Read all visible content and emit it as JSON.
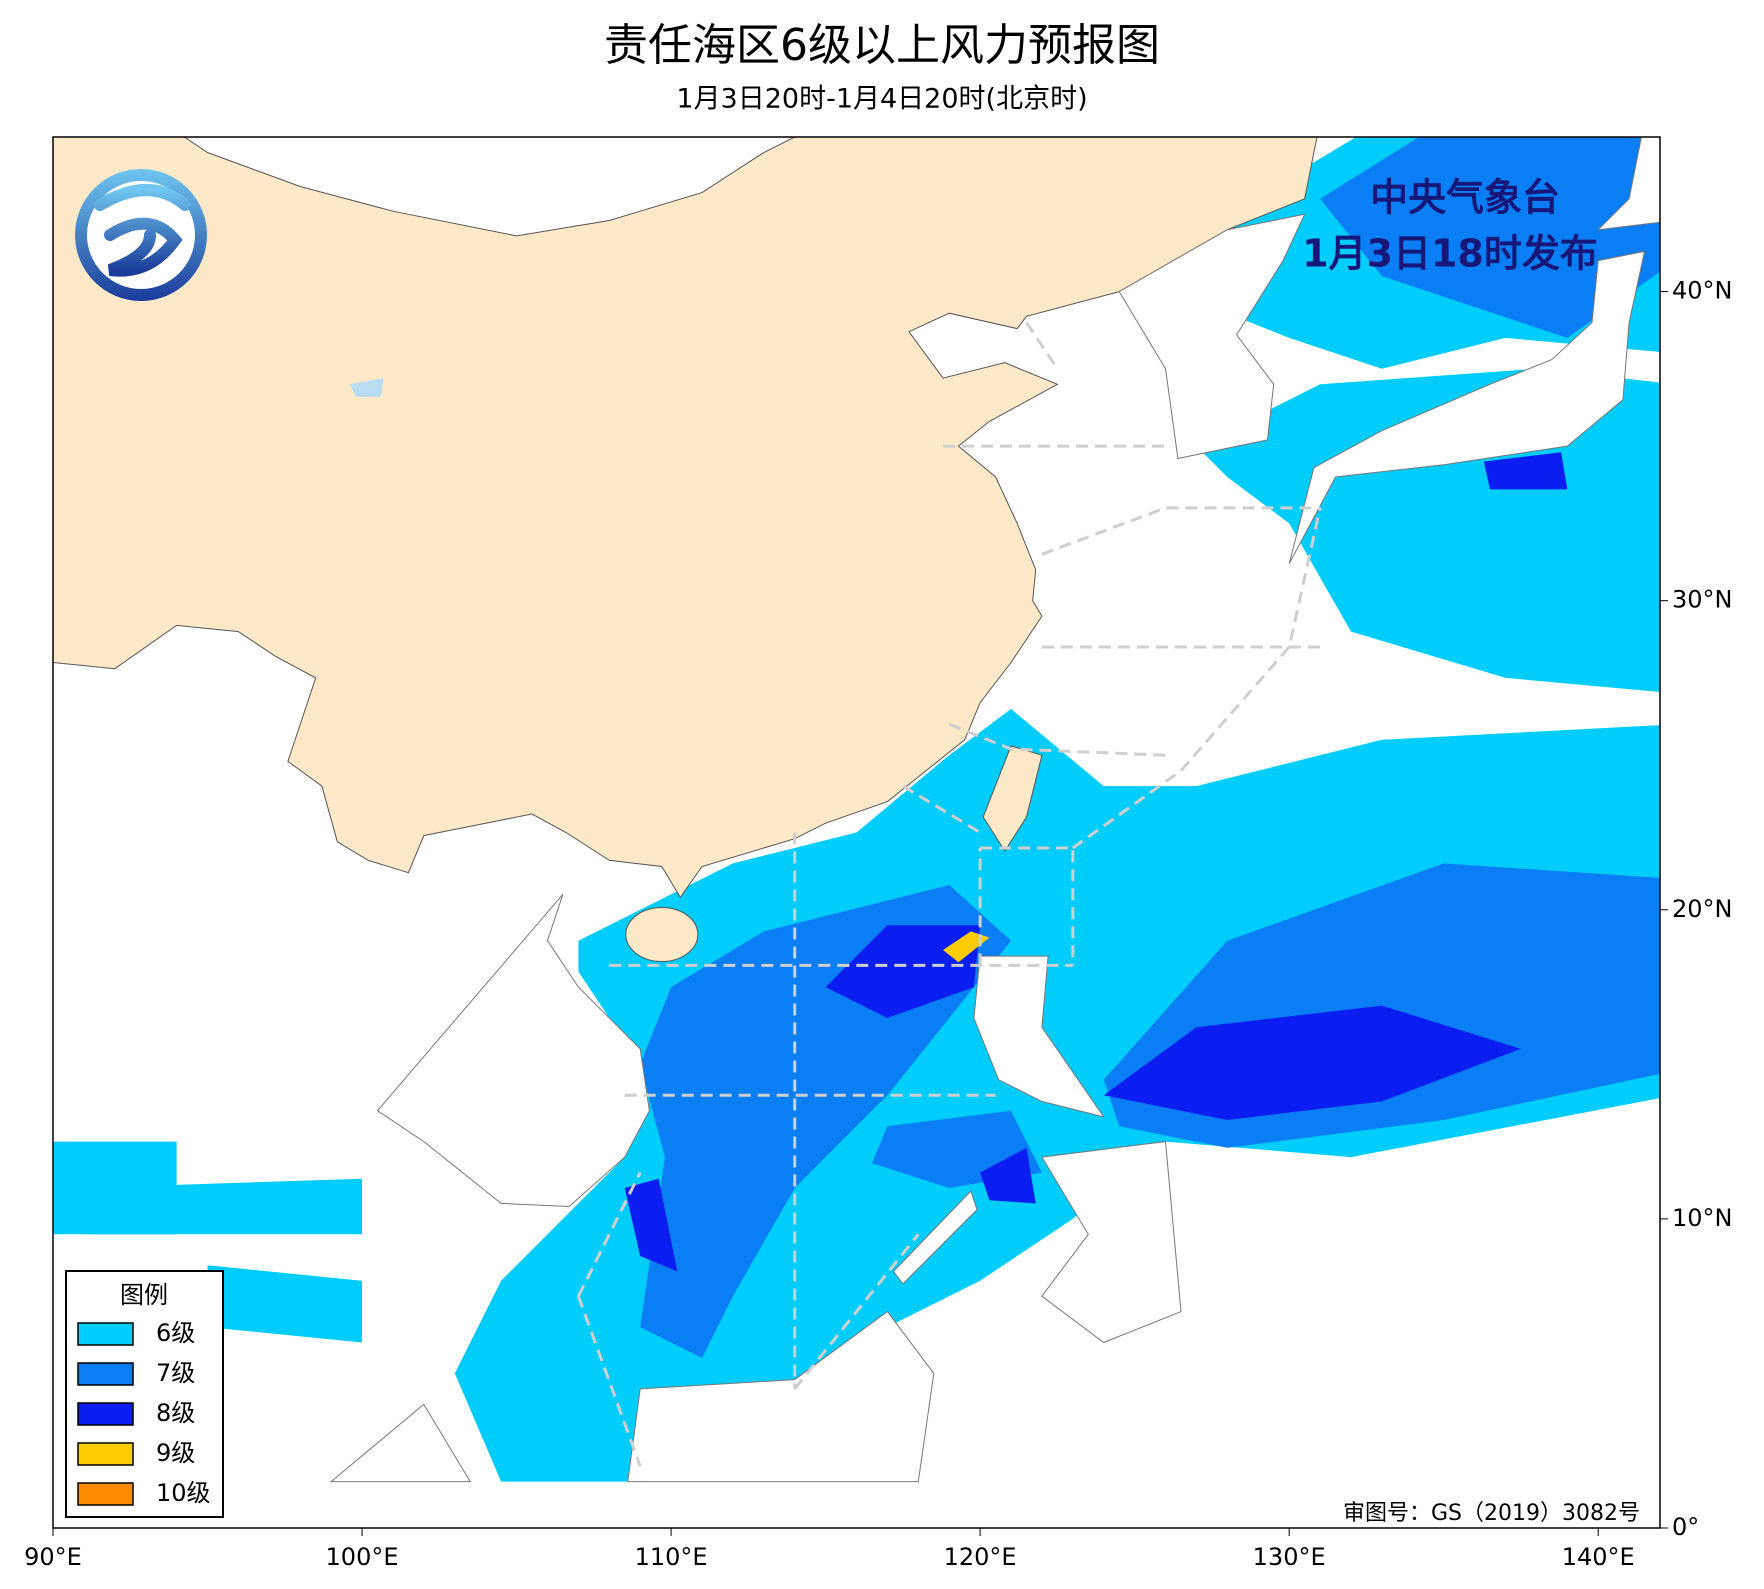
{
  "map": {
    "title": "责任海区6级以上风力预报图",
    "subtitle": "1月3日20时-1月4日20时(北京时)",
    "issuer": "中央气象台",
    "issue_time": "1月3日18时发布",
    "approval": "审图号：GS（2019）3082号",
    "lonlim": [
      90,
      142
    ],
    "latlim": [
      0,
      45
    ],
    "lon_ticks": [
      {
        "value": 90,
        "label": "90°E"
      },
      {
        "value": 100,
        "label": "100°E"
      },
      {
        "value": 110,
        "label": "110°E"
      },
      {
        "value": 120,
        "label": "120°E"
      },
      {
        "value": 130,
        "label": "130°E"
      },
      {
        "value": 140,
        "label": "140°E"
      }
    ],
    "lat_ticks": [
      {
        "value": 0,
        "label": "0°"
      },
      {
        "value": 10,
        "label": "10°N"
      },
      {
        "value": 20,
        "label": "20°N"
      },
      {
        "value": 30,
        "label": "30°N"
      },
      {
        "value": 40,
        "label": "40°N"
      }
    ],
    "legend": {
      "title": "图例",
      "items": [
        {
          "label": "6级",
          "color": "#00cdfc"
        },
        {
          "label": "7级",
          "color": "#0a7ff5"
        },
        {
          "label": "8级",
          "color": "#0a1ef2"
        },
        {
          "label": "9级",
          "color": "#ffcc00"
        },
        {
          "label": "10级",
          "color": "#ff8c00"
        }
      ]
    }
  }
}
